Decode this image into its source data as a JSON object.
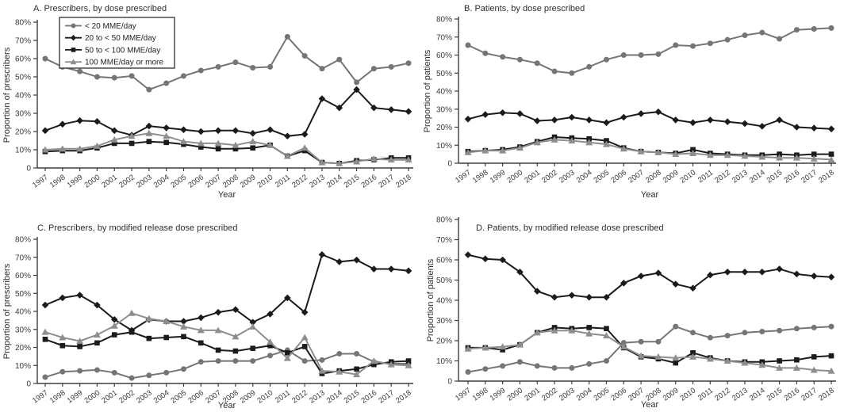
{
  "figure": {
    "background": "#ffffff",
    "layout": {
      "rows": 2,
      "cols": 2
    },
    "axis_color": "#3d3d3d",
    "tick_label_color": "#3a3a3a",
    "title_color": "#2e2e2e"
  },
  "chart_data": [
    {
      "id": "a",
      "type": "line",
      "title": "A. Prescribers, by dose prescribed",
      "xlabel": "Year",
      "ylabel": "Proportion of prescribers",
      "ylim": [
        0,
        80
      ],
      "yticks": [
        "80%",
        "70%",
        "60%",
        "50%",
        "40%",
        "30%",
        "20%",
        "10%",
        "0"
      ],
      "grid": false,
      "legend": true,
      "legend_position": "top-left-inside",
      "x": [
        "1997",
        "1998",
        "1999",
        "2000",
        "2001",
        "2002",
        "2003",
        "2004",
        "2005",
        "2006",
        "2007",
        "2008",
        "2009",
        "2010",
        "2011",
        "2012",
        "2013",
        "2014",
        "2015",
        "2016",
        "2017",
        "2018"
      ],
      "series": [
        {
          "name": "< 20 MME/day",
          "marker": "circle",
          "color": "#757575",
          "values": [
            60,
            55.5,
            53,
            50,
            49.5,
            50.5,
            43,
            46.5,
            50.5,
            53.5,
            55.5,
            58,
            55,
            55.5,
            72,
            61.5,
            54.5,
            59.5,
            47,
            54.5,
            55.5,
            57.5
          ]
        },
        {
          "name": "20 to < 50 MME/day",
          "marker": "diamond",
          "color": "#1b1b1b",
          "values": [
            20.5,
            24,
            26,
            25.5,
            20.5,
            18,
            23,
            22,
            21,
            20,
            20.5,
            20.5,
            19,
            21,
            17.5,
            18.5,
            38,
            33,
            43,
            33,
            32,
            31
          ]
        },
        {
          "name": "50 to < 100 MME/day",
          "marker": "square",
          "color": "#1b1b1b",
          "values": [
            9,
            9.5,
            9.5,
            11,
            13.5,
            13.5,
            14.5,
            14,
            13,
            11.5,
            10.5,
            10.5,
            11,
            12.5,
            6.5,
            9.5,
            3,
            2.5,
            4,
            4.5,
            5.5,
            5.5
          ]
        },
        {
          "name": "100 MME/day or more",
          "marker": "triangle",
          "color": "#8e8e8e",
          "values": [
            10,
            10.5,
            10.5,
            12,
            15.5,
            17.5,
            19,
            17.5,
            14.5,
            13.5,
            13.5,
            12.5,
            14.5,
            12.5,
            6.5,
            11,
            3,
            2.5,
            3.5,
            5,
            4.5,
            4.5
          ]
        }
      ]
    },
    {
      "id": "b",
      "type": "line",
      "title": "B. Patients, by dose prescribed",
      "xlabel": "Year",
      "ylabel": "Proportion of patients",
      "ylim": [
        0,
        80
      ],
      "yticks": [
        "80%",
        "70%",
        "60%",
        "50%",
        "40%",
        "30%",
        "20%",
        "10%",
        "0"
      ],
      "grid": false,
      "legend": false,
      "x": [
        "1997",
        "1998",
        "1999",
        "2000",
        "2001",
        "2002",
        "2003",
        "2004",
        "2005",
        "2006",
        "2007",
        "2008",
        "2009",
        "2010",
        "2011",
        "2012",
        "2013",
        "2014",
        "2015",
        "2016",
        "2017",
        "2018"
      ],
      "series": [
        {
          "name": "< 20 MME/day",
          "marker": "circle",
          "color": "#757575",
          "values": [
            65.5,
            61,
            59,
            57.5,
            55.5,
            51,
            50,
            53.5,
            57.5,
            60,
            60,
            60.5,
            65.5,
            65,
            66.5,
            68.5,
            71,
            72.5,
            69,
            74,
            74.5,
            75
          ]
        },
        {
          "name": "20 to < 50 MME/day",
          "marker": "diamond",
          "color": "#1b1b1b",
          "values": [
            24.5,
            27,
            28,
            27.5,
            23.5,
            24,
            25.5,
            24,
            22.5,
            25.5,
            27.5,
            28.5,
            24,
            22.5,
            24,
            23,
            22,
            20.5,
            24,
            20,
            19.5,
            19
          ]
        },
        {
          "name": "50 to < 100 MME/day",
          "marker": "square",
          "color": "#1b1b1b",
          "values": [
            6.5,
            7,
            7.5,
            9,
            12,
            14.5,
            14,
            13.5,
            12.5,
            8.5,
            6.5,
            6,
            5.5,
            7.5,
            5.5,
            5,
            4.5,
            4.5,
            5,
            4.5,
            5,
            5
          ]
        },
        {
          "name": "100 MME/day or more",
          "marker": "triangle",
          "color": "#8e8e8e",
          "values": [
            6,
            7,
            7,
            8.5,
            11.5,
            13,
            12.5,
            11.5,
            10.5,
            8,
            6.5,
            6,
            5,
            5.5,
            4.5,
            4.5,
            4,
            3.5,
            3,
            3,
            2.5,
            2
          ]
        }
      ]
    },
    {
      "id": "c",
      "type": "line",
      "title": "C. Prescribers, by modified release dose prescribed",
      "xlabel": "Year",
      "ylabel": "Proportion of prescribers",
      "ylim": [
        0,
        80
      ],
      "yticks": [
        "80%",
        "70%",
        "60%",
        "50%",
        "40%",
        "30%",
        "20%",
        "10%",
        "0"
      ],
      "grid": false,
      "legend": false,
      "x": [
        "1997",
        "1998",
        "1999",
        "2000",
        "2001",
        "2002",
        "2003",
        "2004",
        "2005",
        "2006",
        "2007",
        "2008",
        "2009",
        "2010",
        "2011",
        "2012",
        "2013",
        "2014",
        "2015",
        "2016",
        "2017",
        "2018"
      ],
      "series": [
        {
          "name": "< 20 MME/day",
          "marker": "circle",
          "color": "#757575",
          "values": [
            3.5,
            6.5,
            7,
            7.5,
            6,
            3,
            4.5,
            6,
            8,
            12,
            12.5,
            12.5,
            12.5,
            15.5,
            18.5,
            12.5,
            13,
            16.5,
            16.5,
            12,
            11,
            11
          ]
        },
        {
          "name": "20 to < 50 MME/day",
          "marker": "diamond",
          "color": "#1b1b1b",
          "values": [
            43.5,
            47.5,
            49,
            43.5,
            35.5,
            29.5,
            35.5,
            34.5,
            34.5,
            36.5,
            39.5,
            41,
            34,
            38.5,
            47.5,
            39.5,
            71.5,
            67.5,
            68.5,
            63.5,
            63.5,
            62.5
          ]
        },
        {
          "name": "50 to < 100 MME/day",
          "marker": "square",
          "color": "#1b1b1b",
          "values": [
            24.5,
            21,
            20.5,
            22.5,
            27,
            28.5,
            25,
            25.5,
            26,
            22.5,
            18.5,
            18,
            19.5,
            21,
            17,
            20.5,
            5.5,
            7,
            8,
            10.5,
            12,
            12.5
          ]
        },
        {
          "name": "100 MME/day or more",
          "marker": "triangle",
          "color": "#8e8e8e",
          "values": [
            28.5,
            25.5,
            23.5,
            27,
            32,
            39,
            36,
            34.5,
            31.5,
            29.5,
            29.5,
            26,
            31.5,
            23,
            14,
            25.5,
            7,
            6.5,
            5,
            12.5,
            10.5,
            10
          ]
        }
      ]
    },
    {
      "id": "d",
      "type": "line",
      "title": "D. Patients, by modified release dose prescribed",
      "xlabel": "Year",
      "ylabel": "Proportion of patients",
      "ylim": [
        0,
        80
      ],
      "yticks": [
        "80%",
        "70%",
        "60%",
        "50%",
        "40%",
        "30%",
        "20%",
        "10%",
        "0"
      ],
      "grid": false,
      "legend": false,
      "x": [
        "1997",
        "1998",
        "1999",
        "2000",
        "2001",
        "2002",
        "2003",
        "2004",
        "2005",
        "2006",
        "2007",
        "2008",
        "2009",
        "2010",
        "2011",
        "2012",
        "2013",
        "2014",
        "2015",
        "2016",
        "2017",
        "2018"
      ],
      "series": [
        {
          "name": "< 20 MME/day",
          "marker": "circle",
          "color": "#757575",
          "values": [
            4.5,
            6,
            7.5,
            9.5,
            7.5,
            6.5,
            6.5,
            8.5,
            10,
            19,
            19.5,
            19.5,
            27,
            24,
            21.5,
            22.5,
            24,
            24.5,
            25,
            26,
            26.5,
            27
          ]
        },
        {
          "name": "20 to < 50 MME/day",
          "marker": "diamond",
          "color": "#1b1b1b",
          "values": [
            62.5,
            60.5,
            60,
            54,
            44.5,
            41.5,
            42.5,
            41.5,
            41.5,
            48.5,
            52,
            53.5,
            48,
            46,
            52.5,
            54,
            54,
            54,
            55.5,
            53,
            52,
            51.5
          ]
        },
        {
          "name": "50 to < 100 MME/day",
          "marker": "square",
          "color": "#1b1b1b",
          "values": [
            16.5,
            16.5,
            15.5,
            18,
            24,
            26.5,
            26,
            26.5,
            26,
            16.5,
            12,
            11,
            9,
            14,
            11.5,
            10,
            9.5,
            9.5,
            10,
            10.5,
            12,
            12.5
          ]
        },
        {
          "name": "100 MME/day or more",
          "marker": "triangle",
          "color": "#8e8e8e",
          "values": [
            16,
            16.5,
            17,
            18,
            24,
            25,
            25,
            23.5,
            22.5,
            17,
            12.5,
            12,
            11.5,
            12,
            11,
            10,
            9,
            8,
            6.5,
            6.5,
            5.5,
            5
          ]
        }
      ]
    }
  ]
}
